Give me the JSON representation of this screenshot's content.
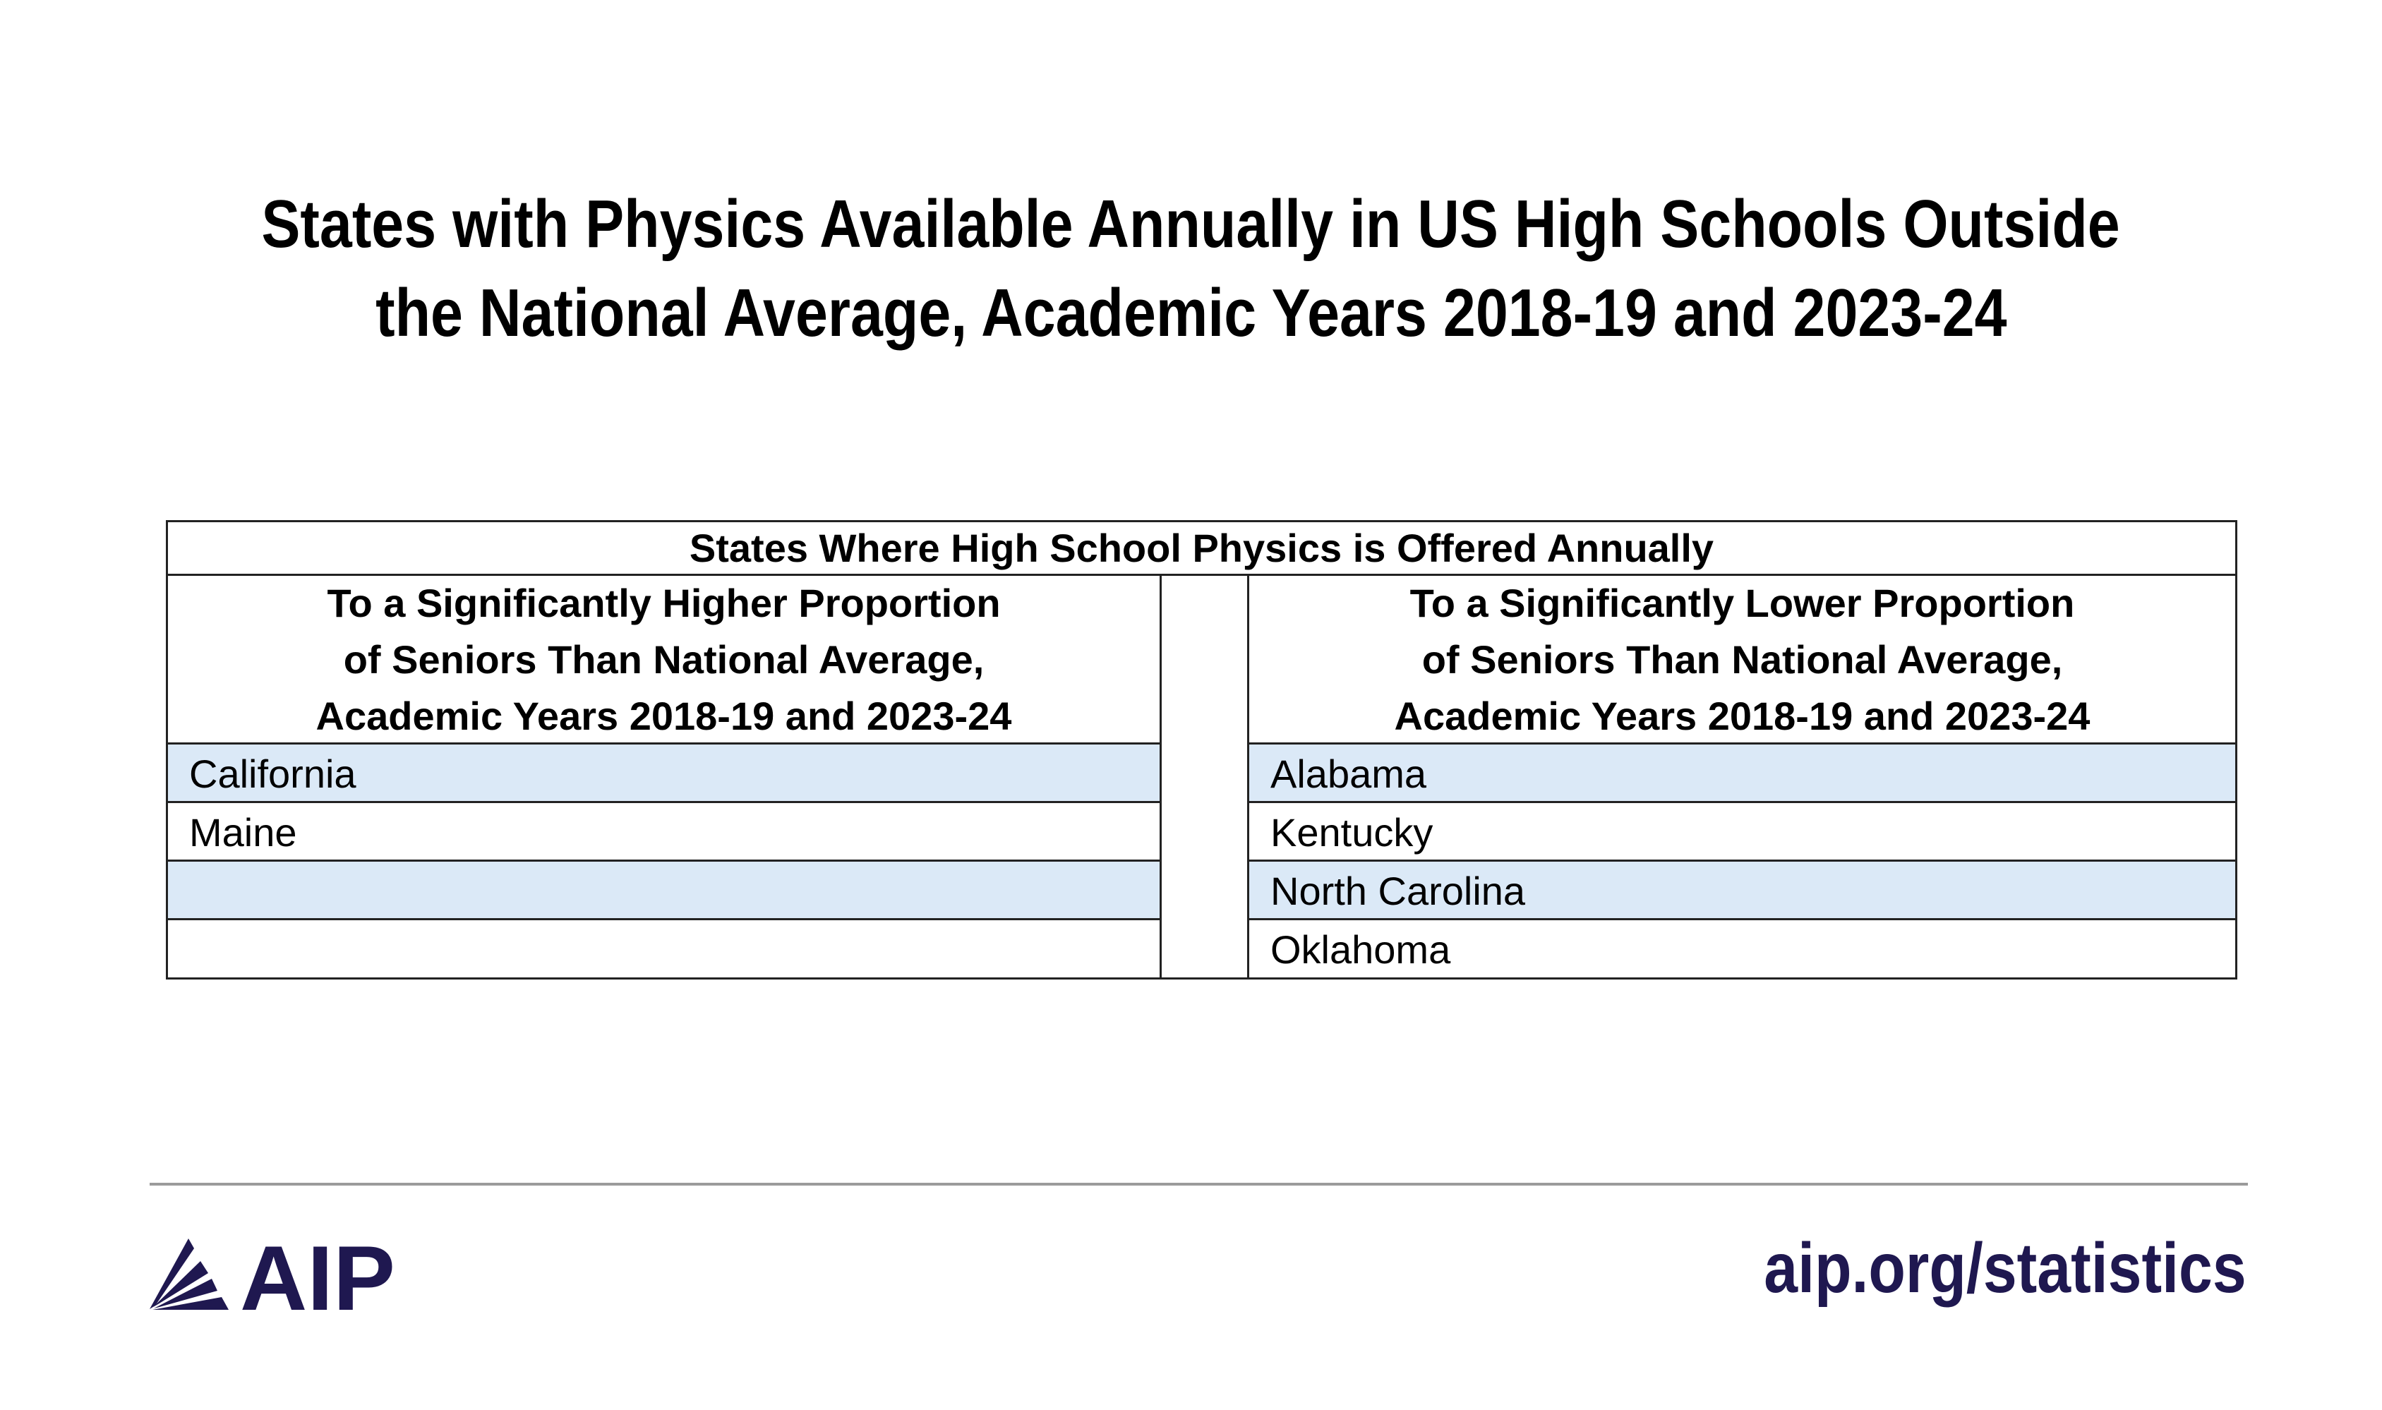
{
  "title": {
    "line1": "States with Physics Available Annually in US High Schools Outside",
    "line2": "the National Average, Academic Years 2018-19 and 2023-24"
  },
  "table": {
    "header": "States Where High School Physics is Offered Annually",
    "left": {
      "heading": [
        "To a Significantly Higher Proportion",
        "of Seniors Than National Average,",
        "Academic Years 2018-19 and 2023-24"
      ],
      "rows": [
        "California",
        "Maine",
        "",
        ""
      ]
    },
    "right": {
      "heading": [
        "To a Significantly Lower Proportion",
        "of Seniors Than National Average,",
        "Academic Years 2018-19 and 2023-24"
      ],
      "rows": [
        "Alabama",
        "Kentucky",
        "North Carolina",
        "Oklahoma"
      ]
    },
    "shade_color": "#dbe9f7"
  },
  "footer": {
    "logo_text": "AIP",
    "logo_icon": "aip-rays-logo",
    "url": "aip.org/statistics",
    "brand_color": "#1f1850"
  }
}
